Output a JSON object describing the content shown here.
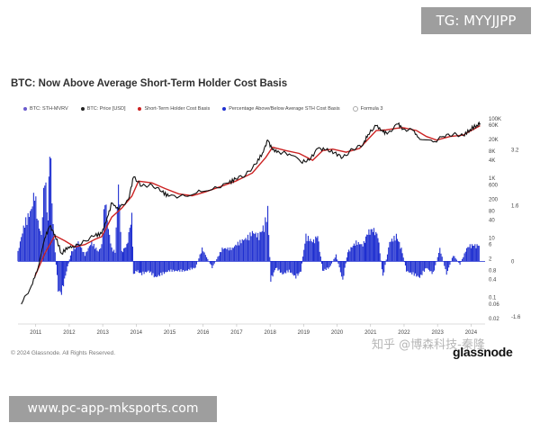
{
  "badge": {
    "text": "TG: MYYJJPP"
  },
  "footer": {
    "copyright": "© 2024 Glassnode. All Rights Reserved.",
    "brand": "glassnode",
    "watermark": "知乎 @博森科技-秦隆",
    "url": "www.pc-app-mksports.com"
  },
  "chart_data": {
    "type": "line",
    "title": "BTC: Now Above Average Short-Term Holder Cost Basis",
    "legend": [
      {
        "label": "BTC: STH-MVRV",
        "color": "#6a5acd"
      },
      {
        "label": "BTC: Price [USD]",
        "color": "#222222"
      },
      {
        "label": "Short-Term Holder Cost Basis",
        "color": "#cc2222"
      },
      {
        "label": "Percentage Above/Below Average STH Cost Basis",
        "color": "#1f2fd0"
      },
      {
        "label": "Formula 3",
        "color": "#ffffff"
      }
    ],
    "x_ticks": [
      "2011",
      "2012",
      "2013",
      "2014",
      "2015",
      "2016",
      "2017",
      "2018",
      "2019",
      "2020",
      "2021",
      "2022",
      "2023",
      "2024"
    ],
    "y_left_ticks": [
      "100K",
      "60K",
      "20K",
      "8K",
      "4K",
      "1K",
      "600",
      "200",
      "80",
      "40",
      "10",
      "6",
      "2",
      "0.8",
      "0.4",
      "0.1",
      "0.06",
      "0.02"
    ],
    "y_right_ticks": [
      "3.2",
      "1.6",
      "0",
      "-1.6"
    ],
    "y_scale": "log",
    "grid": false,
    "series": [
      {
        "name": "BTC: Price [USD]",
        "x": [
          2010.6,
          2010.9,
          2011.1,
          2011.3,
          2011.45,
          2011.6,
          2011.8,
          2012.0,
          2012.2,
          2012.5,
          2012.8,
          2013.0,
          2013.2,
          2013.3,
          2013.5,
          2013.8,
          2013.95,
          2014.2,
          2014.5,
          2014.8,
          2015.0,
          2015.5,
          2015.9,
          2016.3,
          2016.8,
          2017.0,
          2017.3,
          2017.6,
          2017.8,
          2017.96,
          2018.1,
          2018.3,
          2018.6,
          2018.95,
          2019.2,
          2019.45,
          2019.7,
          2019.95,
          2020.2,
          2020.5,
          2020.8,
          2020.95,
          2021.2,
          2021.4,
          2021.55,
          2021.85,
          2022.0,
          2022.3,
          2022.5,
          2022.9,
          2023.2,
          2023.5,
          2023.8,
          2024.0,
          2024.2,
          2024.3
        ],
        "values": [
          0.06,
          0.25,
          1,
          10,
          25,
          13,
          3,
          5,
          5,
          8,
          12,
          14,
          60,
          150,
          90,
          200,
          1100,
          550,
          600,
          350,
          250,
          250,
          400,
          420,
          700,
          950,
          1300,
          3000,
          7000,
          19000,
          9000,
          7500,
          6500,
          3500,
          4000,
          10000,
          9000,
          7200,
          5000,
          9500,
          13000,
          29000,
          58000,
          36000,
          33000,
          66000,
          45000,
          40000,
          20000,
          16500,
          25000,
          30000,
          27000,
          43000,
          60000,
          70000
        ]
      },
      {
        "name": "Short-Term Holder Cost Basis",
        "x": [
          2011.0,
          2011.3,
          2011.6,
          2011.9,
          2012.2,
          2012.5,
          2012.8,
          2013.0,
          2013.3,
          2013.6,
          2013.9,
          2014.1,
          2014.5,
          2014.9,
          2015.3,
          2015.7,
          2016.1,
          2016.6,
          2017.0,
          2017.5,
          2017.9,
          2018.1,
          2018.5,
          2018.9,
          2019.3,
          2019.6,
          2019.9,
          2020.3,
          2020.7,
          2020.95,
          2021.2,
          2021.5,
          2021.8,
          2022.0,
          2022.4,
          2022.7,
          2023.0,
          2023.4,
          2023.8,
          2024.0,
          2024.3
        ],
        "values": [
          0.5,
          3,
          12,
          8,
          5,
          6,
          9,
          11,
          50,
          100,
          250,
          800,
          700,
          450,
          300,
          260,
          350,
          550,
          800,
          1500,
          5000,
          11000,
          8500,
          6800,
          4000,
          8500,
          9500,
          7500,
          10000,
          20000,
          40000,
          42000,
          47000,
          50000,
          40000,
          25000,
          19000,
          25000,
          28000,
          38000,
          58000
        ]
      },
      {
        "name": "Percentage Above/Below Average STH Cost Basis",
        "x": [
          2010.5,
          2010.7,
          2010.9,
          2011.0,
          2011.1,
          2011.2,
          2011.3,
          2011.4,
          2011.45,
          2011.55,
          2011.7,
          2011.8,
          2011.95,
          2012.1,
          2012.3,
          2012.5,
          2012.7,
          2012.9,
          2013.0,
          2013.1,
          2013.2,
          2013.3,
          2013.4,
          2013.5,
          2013.6,
          2013.75,
          2013.9,
          2013.95,
          2014.05,
          2014.2,
          2014.4,
          2014.6,
          2014.8,
          2015.0,
          2015.2,
          2015.5,
          2015.8,
          2016.0,
          2016.3,
          2016.6,
          2016.9,
          2017.1,
          2017.3,
          2017.5,
          2017.7,
          2017.85,
          2017.96,
          2018.05,
          2018.2,
          2018.4,
          2018.6,
          2018.8,
          2018.95,
          2019.1,
          2019.3,
          2019.45,
          2019.6,
          2019.8,
          2020.0,
          2020.2,
          2020.35,
          2020.6,
          2020.8,
          2020.95,
          2021.1,
          2021.25,
          2021.4,
          2021.6,
          2021.8,
          2021.95,
          2022.1,
          2022.3,
          2022.5,
          2022.7,
          2022.9,
          2023.1,
          2023.3,
          2023.5,
          2023.7,
          2023.9,
          2024.0,
          2024.15,
          2024.3
        ],
        "values": [
          0.3,
          1.2,
          1.6,
          2.2,
          1.2,
          0.8,
          2.8,
          1.2,
          3.9,
          1.1,
          -0.9,
          -1.0,
          -0.3,
          0.3,
          0.6,
          0.2,
          0.6,
          0.3,
          0.5,
          2.0,
          1.0,
          0.4,
          0.3,
          2.4,
          0.3,
          0.5,
          1.4,
          -0.4,
          -0.3,
          -0.4,
          -0.3,
          -0.5,
          -0.4,
          -0.3,
          -0.3,
          -0.3,
          -0.2,
          0.4,
          -0.2,
          0.4,
          0.4,
          0.6,
          0.7,
          0.9,
          0.8,
          1.1,
          1.6,
          -0.6,
          -0.2,
          -0.4,
          -0.3,
          -0.5,
          -0.3,
          0.8,
          0.6,
          0.8,
          -0.3,
          -0.2,
          0.2,
          -0.6,
          0.3,
          0.6,
          0.5,
          0.9,
          1.0,
          0.8,
          -0.5,
          0.6,
          0.8,
          0.4,
          -0.3,
          -0.4,
          -0.5,
          -0.2,
          -0.4,
          0.4,
          -0.4,
          0.2,
          -0.1,
          0.4,
          0.5,
          0.5,
          0.5
        ]
      }
    ]
  }
}
